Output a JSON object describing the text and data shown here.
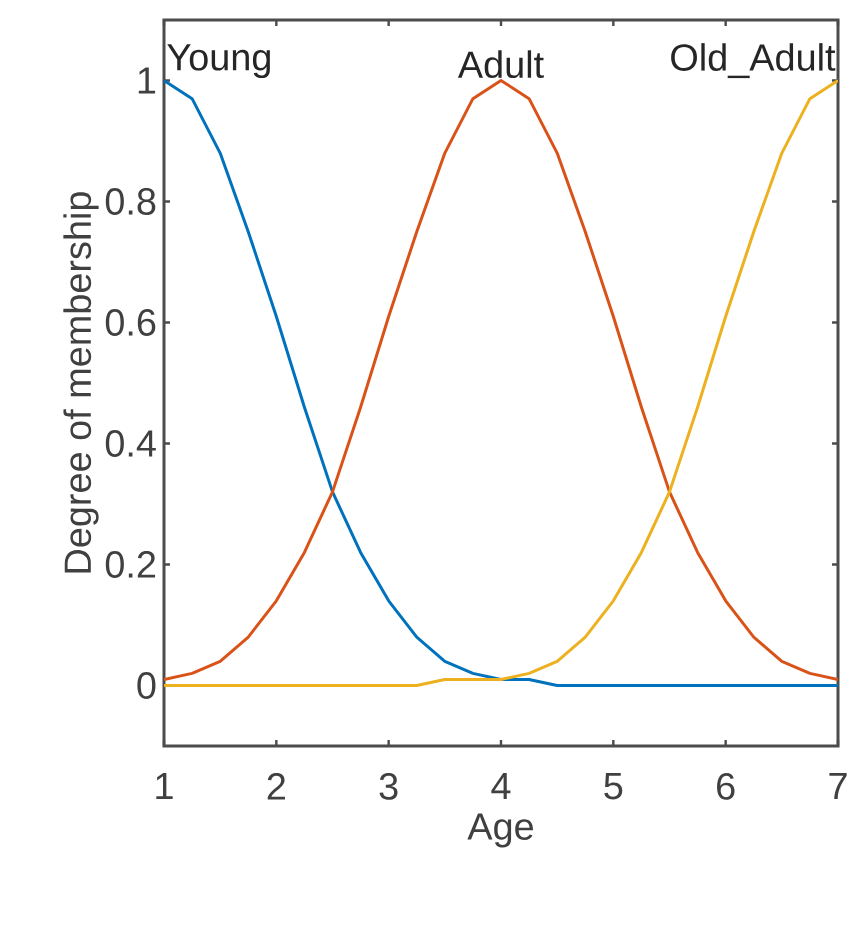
{
  "chart_data": {
    "type": "line",
    "xlabel": "Age",
    "ylabel": "Degree of membership",
    "xlim": [
      1,
      7
    ],
    "ylim": [
      -0.1,
      1.1
    ],
    "xticks": [
      1,
      2,
      3,
      4,
      5,
      6,
      7
    ],
    "yticks": [
      0,
      0.2,
      0.4,
      0.6,
      0.8,
      1
    ],
    "grid": false,
    "marker": "none",
    "line_style": "solid",
    "x": [
      1,
      1.25,
      1.5,
      1.75,
      2,
      2.25,
      2.5,
      2.75,
      3,
      3.25,
      3.5,
      3.75,
      4,
      4.25,
      4.5,
      4.75,
      5,
      5.25,
      5.5,
      5.75,
      6,
      6.25,
      6.5,
      6.75,
      7
    ],
    "series": [
      {
        "color": "#0072bd",
        "values": [
          1,
          0.97,
          0.88,
          0.75,
          0.61,
          0.46,
          0.32,
          0.22,
          0.14,
          0.08,
          0.04,
          0.02,
          0.01,
          0.01,
          0,
          0,
          0,
          0,
          0,
          0,
          0,
          0,
          0,
          0,
          0
        ]
      },
      {
        "color": "#d95319",
        "values": [
          0.01,
          0.02,
          0.04,
          0.08,
          0.14,
          0.22,
          0.32,
          0.46,
          0.61,
          0.75,
          0.88,
          0.97,
          1,
          0.97,
          0.88,
          0.75,
          0.61,
          0.46,
          0.32,
          0.22,
          0.14,
          0.08,
          0.04,
          0.02,
          0.01
        ]
      },
      {
        "color": "#edb120",
        "values": [
          0,
          0,
          0,
          0,
          0,
          0,
          0,
          0,
          0,
          0,
          0.01,
          0.01,
          0.01,
          0.02,
          0.04,
          0.08,
          0.14,
          0.22,
          0.32,
          0.46,
          0.61,
          0.75,
          0.88,
          0.97,
          1
        ]
      }
    ],
    "annotations": [
      {
        "text": "Young",
        "x": 1,
        "y": 1
      },
      {
        "text": "Adult",
        "x": 4,
        "y": 1
      },
      {
        "text": "Old_Adult",
        "x": 7,
        "y": 1
      }
    ]
  }
}
